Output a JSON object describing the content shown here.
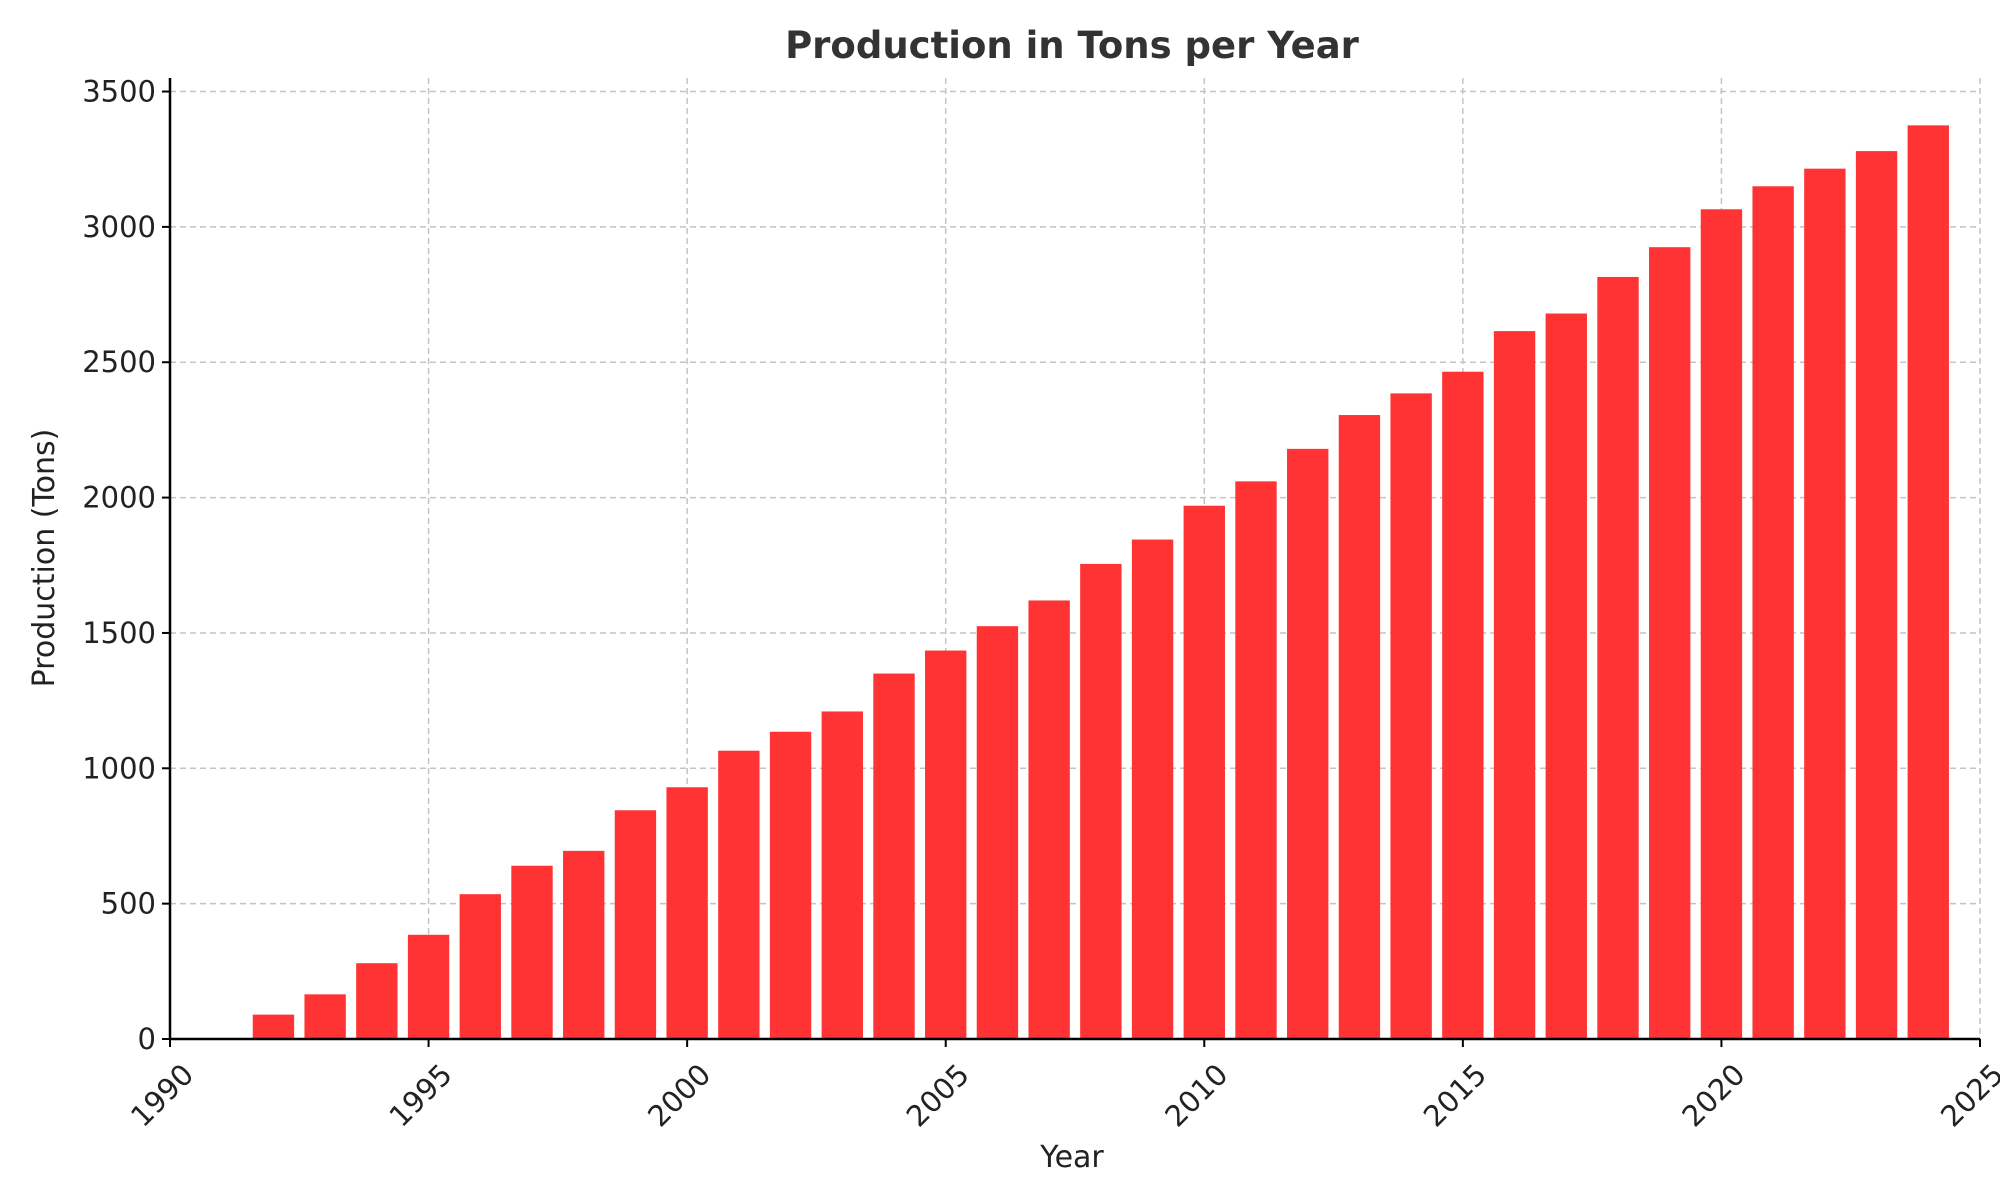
{
  "chart_data": {
    "type": "bar",
    "title": "Production in Tons per Year",
    "xlabel": "Year",
    "ylabel": "Production (Tons)",
    "x": [
      1992,
      1993,
      1994,
      1995,
      1996,
      1997,
      1998,
      1999,
      2000,
      2001,
      2002,
      2003,
      2004,
      2005,
      2006,
      2007,
      2008,
      2009,
      2010,
      2011,
      2012,
      2013,
      2014,
      2015,
      2016,
      2017,
      2018,
      2019,
      2020,
      2021,
      2022,
      2023,
      2024
    ],
    "values": [
      90,
      165,
      280,
      385,
      535,
      640,
      695,
      845,
      930,
      1065,
      1135,
      1210,
      1350,
      1435,
      1525,
      1620,
      1755,
      1845,
      1970,
      2060,
      2180,
      2305,
      2385,
      2465,
      2615,
      2680,
      2815,
      2925,
      3065,
      3150,
      3215,
      3280,
      3375
    ],
    "xlim": [
      1990,
      2025
    ],
    "ylim": [
      0,
      3550
    ],
    "xticks": [
      1990,
      1995,
      2000,
      2005,
      2010,
      2015,
      2020,
      2025
    ],
    "yticks": [
      0,
      500,
      1000,
      1500,
      2000,
      2500,
      3000,
      3500
    ],
    "grid": true,
    "bar_color": "#ff3333"
  }
}
